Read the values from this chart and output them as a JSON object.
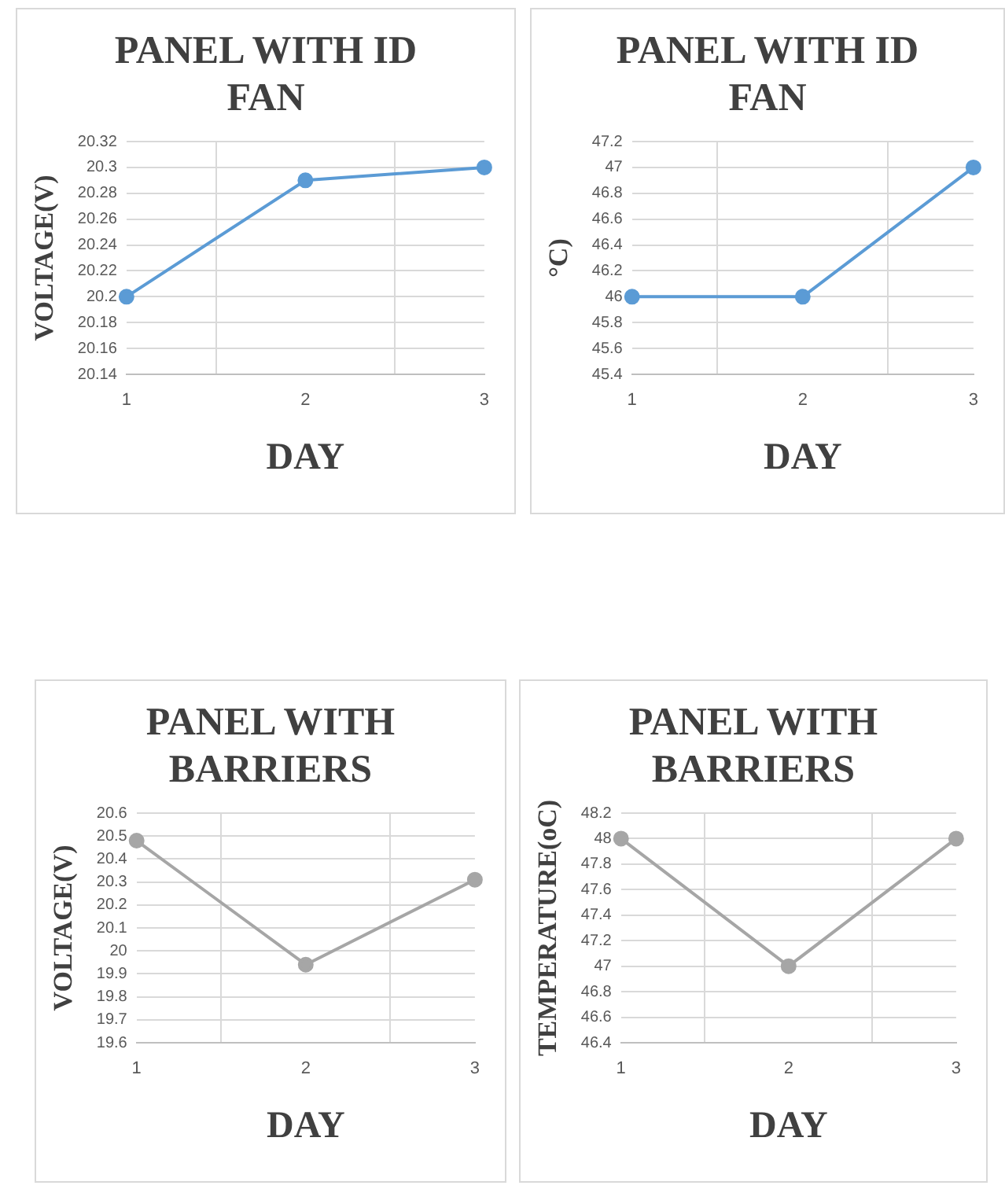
{
  "chart_data": [
    {
      "type": "line",
      "title": "PANEL WITH ID FAN",
      "xlabel": "DAY",
      "ylabel": "VOLTAGE(V)",
      "categories": [
        "1",
        "2",
        "3"
      ],
      "series": [
        {
          "color": "#5b9bd5",
          "values": [
            20.2,
            20.29,
            20.3
          ]
        }
      ],
      "ylim": [
        20.14,
        20.32
      ],
      "yticks": [
        20.14,
        20.16,
        20.18,
        20.2,
        20.22,
        20.24,
        20.26,
        20.28,
        20.3,
        20.32
      ],
      "grid": true,
      "marker": "circle",
      "legend": false
    },
    {
      "type": "line",
      "title": "PANEL WITH ID FAN",
      "xlabel": "DAY",
      "ylabel": "°C)",
      "categories": [
        "1",
        "2",
        "3"
      ],
      "series": [
        {
          "color": "#5b9bd5",
          "values": [
            46,
            46,
            47
          ]
        }
      ],
      "ylim": [
        45.4,
        47.2
      ],
      "yticks": [
        45.4,
        45.6,
        45.8,
        46,
        46.2,
        46.4,
        46.6,
        46.8,
        47,
        47.2
      ],
      "grid": true,
      "marker": "circle",
      "legend": false
    },
    {
      "type": "line",
      "title": "PANEL WITH BARRIERS",
      "xlabel": "DAY",
      "ylabel": "VOLTAGE(V)",
      "categories": [
        "1",
        "2",
        "3"
      ],
      "series": [
        {
          "color": "#a6a6a6",
          "values": [
            20.48,
            19.94,
            20.31
          ]
        }
      ],
      "ylim": [
        19.6,
        20.6
      ],
      "yticks": [
        19.6,
        19.7,
        19.8,
        19.9,
        20,
        20.1,
        20.2,
        20.3,
        20.4,
        20.5,
        20.6
      ],
      "grid": true,
      "marker": "circle",
      "legend": false
    },
    {
      "type": "line",
      "title": "PANEL WITH BARRIERS",
      "xlabel": "DAY",
      "ylabel": "TEMPERATURE(oC)",
      "categories": [
        "1",
        "2",
        "3"
      ],
      "series": [
        {
          "color": "#a6a6a6",
          "values": [
            48,
            47,
            48
          ]
        }
      ],
      "ylim": [
        46.4,
        48.2
      ],
      "yticks": [
        46.4,
        46.6,
        46.8,
        47,
        47.2,
        47.4,
        47.6,
        47.8,
        48,
        48.2
      ],
      "grid": true,
      "marker": "circle",
      "legend": false
    }
  ]
}
